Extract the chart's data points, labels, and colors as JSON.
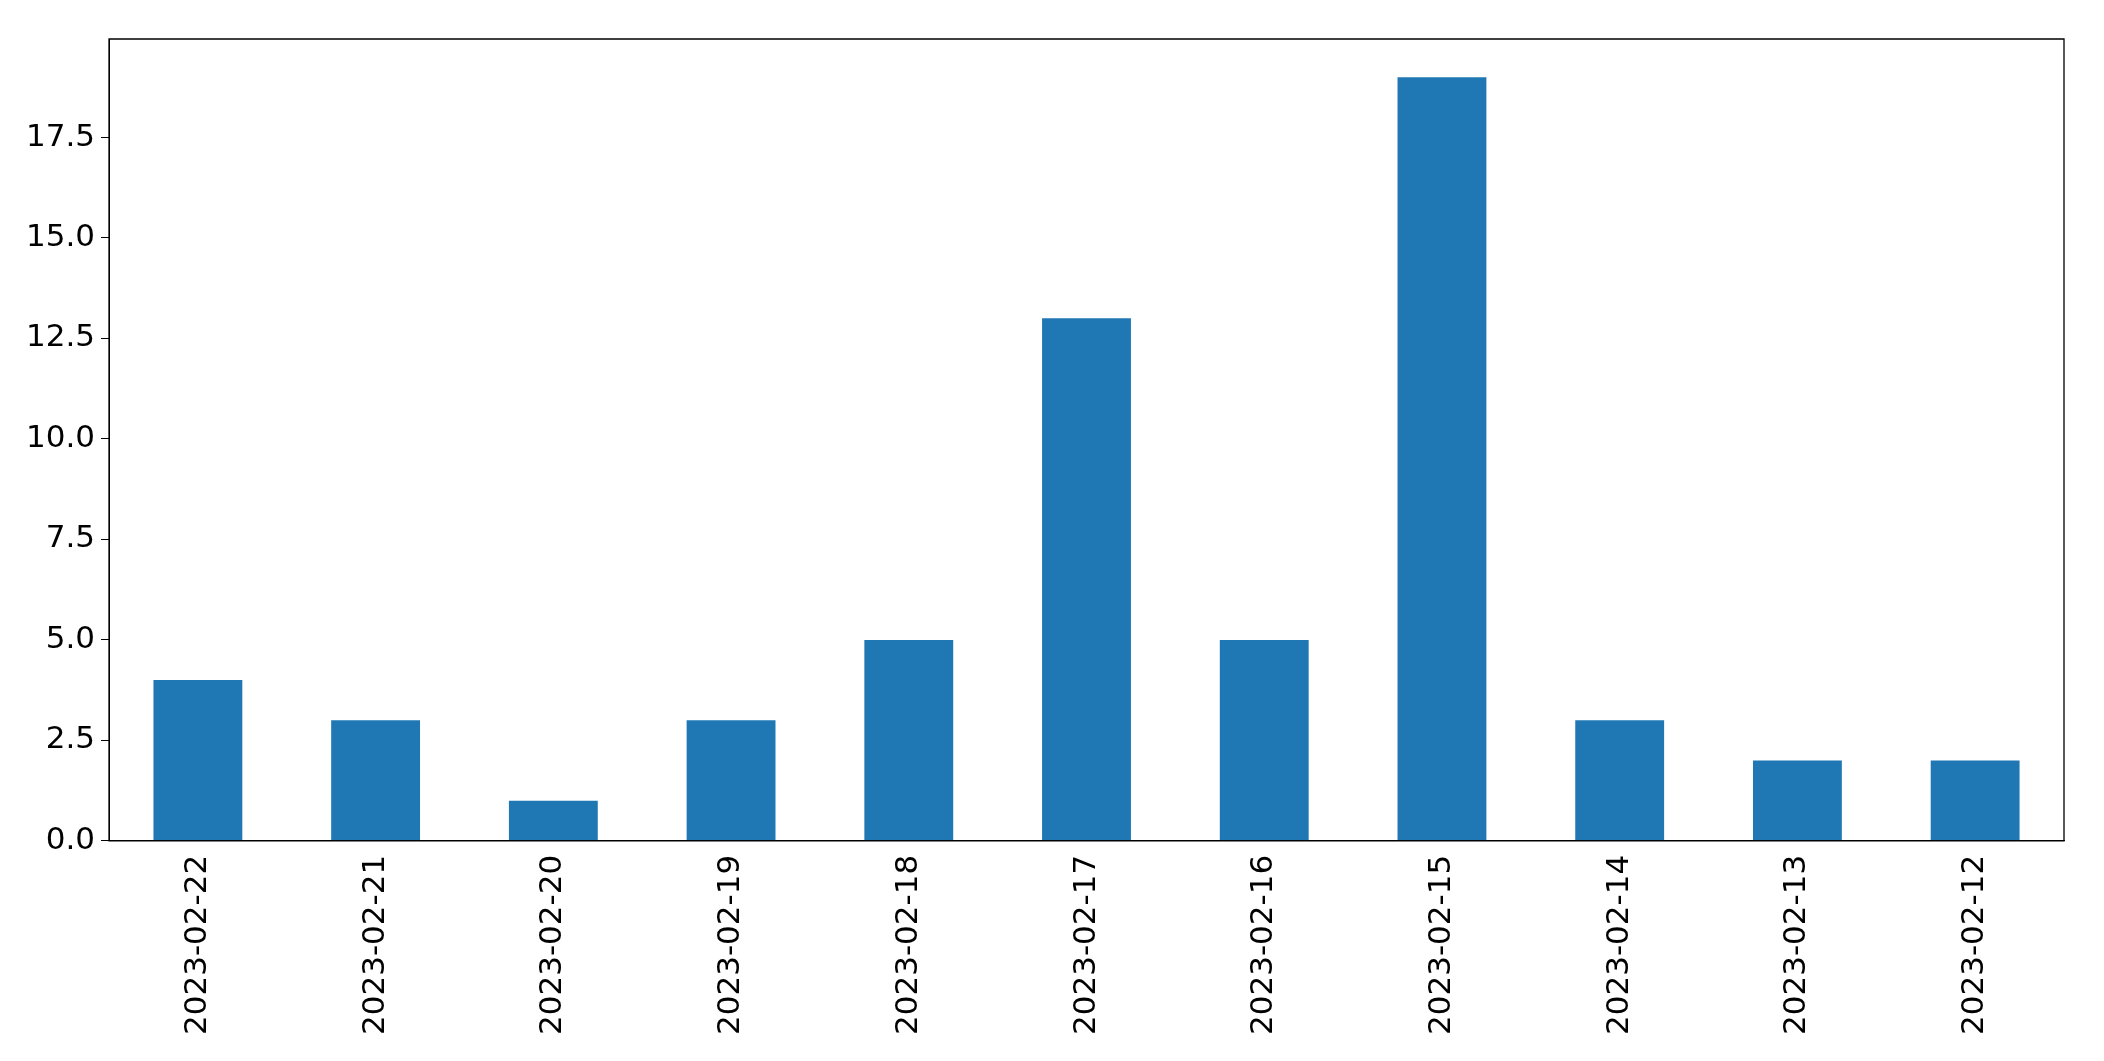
{
  "chart_data": {
    "type": "bar",
    "categories": [
      "2023-02-22",
      "2023-02-21",
      "2023-02-20",
      "2023-02-19",
      "2023-02-18",
      "2023-02-17",
      "2023-02-16",
      "2023-02-15",
      "2023-02-14",
      "2023-02-13",
      "2023-02-12"
    ],
    "values": [
      4,
      3,
      1,
      3,
      5,
      13,
      5,
      19,
      3,
      2,
      2
    ],
    "color": "#1f77b4",
    "ylim": [
      0,
      19.95
    ],
    "yticks": [
      {
        "value": 0,
        "label": "0.0"
      },
      {
        "value": 2.5,
        "label": "2.5"
      },
      {
        "value": 5,
        "label": "5.0"
      },
      {
        "value": 7.5,
        "label": "7.5"
      },
      {
        "value": 10,
        "label": "10.0"
      },
      {
        "value": 12.5,
        "label": "12.5"
      },
      {
        "value": 15,
        "label": "15.0"
      },
      {
        "value": 17.5,
        "label": "17.5"
      }
    ],
    "grid": false,
    "legend": false
  }
}
